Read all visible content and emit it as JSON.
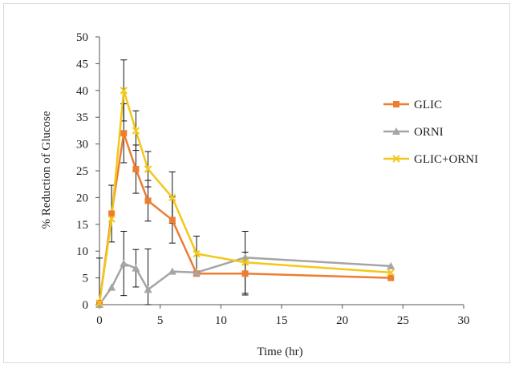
{
  "chart_data": {
    "type": "line",
    "xlabel": "Time (hr)",
    "ylabel": "% Reduction of Glucose",
    "xlim": [
      0,
      30
    ],
    "ylim": [
      0,
      50
    ],
    "xticks": [
      0,
      5,
      10,
      15,
      20,
      25,
      30
    ],
    "yticks": [
      0,
      5,
      10,
      15,
      20,
      25,
      30,
      35,
      40,
      45,
      50
    ],
    "grid": false,
    "legend_position": "right",
    "series": [
      {
        "name": "GLIC",
        "color": "#ed7d31",
        "marker": "square",
        "x": [
          0,
          1,
          2,
          3,
          4,
          6,
          8,
          12,
          24
        ],
        "y": [
          0.3,
          17,
          32,
          25.3,
          19.4,
          15.8,
          5.8,
          5.8,
          5
        ],
        "err": [
          0,
          5.3,
          5.5,
          4.5,
          3.8,
          4.3,
          0,
          4,
          0
        ]
      },
      {
        "name": "ORNI",
        "color": "#a5a5a5",
        "marker": "triangle",
        "x": [
          0,
          1,
          2,
          3,
          4,
          6,
          8,
          12,
          24
        ],
        "y": [
          0,
          3.2,
          7.7,
          6.8,
          2.8,
          6.2,
          6,
          8.8,
          7.2
        ],
        "err": [
          0,
          0,
          6,
          3.5,
          7.6,
          0,
          0,
          0,
          0
        ]
      },
      {
        "name": "GLIC+ORNI",
        "color": "#f2c819",
        "marker": "x",
        "x": [
          0,
          1,
          2,
          3,
          4,
          6,
          8,
          12,
          24
        ],
        "y": [
          0.3,
          16,
          40,
          32.5,
          25.3,
          20,
          9.5,
          7.9,
          6
        ],
        "err": [
          8.4,
          0,
          5.7,
          3.7,
          3.3,
          4.8,
          3.3,
          5.8,
          0
        ]
      }
    ]
  }
}
